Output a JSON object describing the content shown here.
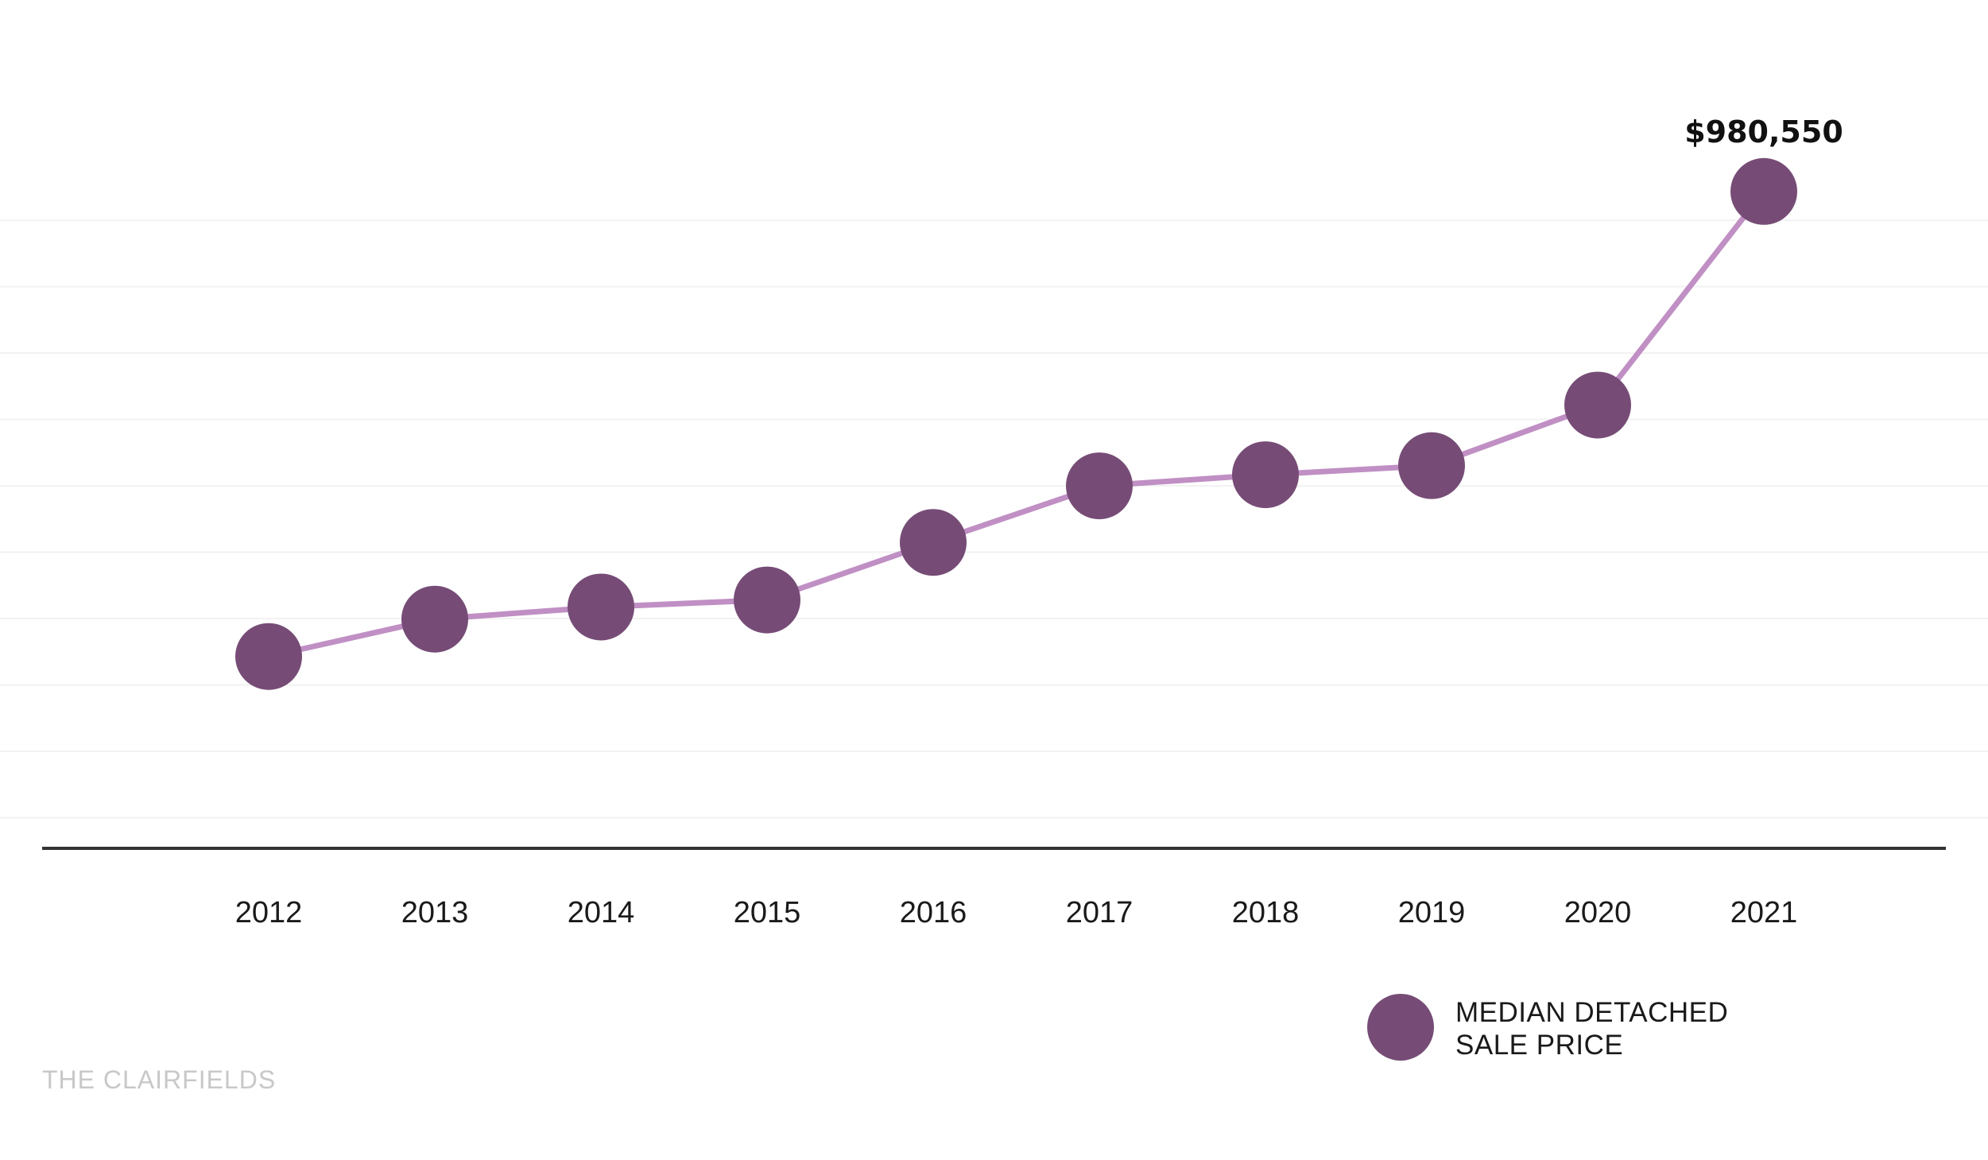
{
  "brand": "THE CLAIRFIELDS",
  "colors": {
    "line": "#c08fc4",
    "marker": "#764c76",
    "axis": "#333333",
    "grid": "#f2f2f2"
  },
  "chart_data": {
    "type": "line",
    "title": "",
    "xlabel": "",
    "ylabel": "",
    "categories": [
      "2012",
      "2013",
      "2014",
      "2015",
      "2016",
      "2017",
      "2018",
      "2019",
      "2020",
      "2021"
    ],
    "series": [
      {
        "name": "MEDIAN DETACHED SALE PRICE",
        "values": [
          520000,
          557000,
          569000,
          576000,
          633000,
          689000,
          700000,
          709000,
          769000,
          980550
        ]
      }
    ],
    "data_labels": [
      {
        "index": 9,
        "text": "$980,550"
      }
    ],
    "legend": {
      "position": "bottom-right",
      "lines": [
        "MEDIAN DETACHED",
        "SALE PRICE"
      ]
    },
    "ylim": [
      330000,
      1030000
    ],
    "grid": true
  }
}
